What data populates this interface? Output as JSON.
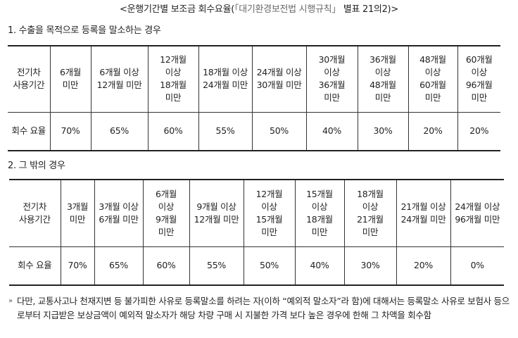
{
  "title": {
    "main": "<운행기간별 보조금 회수요율(",
    "law": "「대기환경보전법 시행규칙」",
    "suffix": " 별표 21의2)>"
  },
  "section_a": {
    "heading": "1. 수출을 목적으로 등록을 말소하는 경우",
    "header_label": "전기차 사용기간",
    "periods": [
      "6개월 미만",
      "6개월 이상 12개월 미만",
      "12개월 이상 18개월 미만",
      "18개월 이상 24개월 미만",
      "24개월 이상 30개월 미만",
      "30개월 이상 36개월 미만",
      "36개월 이상 48개월 미만",
      "48개월 이상 60개월 미만",
      "60개월 이상 96개월 미만"
    ],
    "rate_label": "회수 요율",
    "rates": [
      "70%",
      "65%",
      "60%",
      "55%",
      "50%",
      "40%",
      "30%",
      "20%",
      "20%"
    ]
  },
  "section_b": {
    "heading": "2. 그 밖의 경우",
    "header_label": "전기차 사용기간",
    "periods": [
      "3개월 미만",
      "3개월 이상 6개월 미만",
      "6개월 이상 9개월 미만",
      "9개월 이상 12개월 미만",
      "12개월 이상 15개월 미만",
      "15개월 이상 18개월 미만",
      "18개월 이상 21개월 미만",
      "21개월 이상 24개월 미만",
      "24개월 이상 96개월 미만"
    ],
    "rate_label": "회수 요율",
    "rates": [
      "70%",
      "65%",
      "60%",
      "55%",
      "50%",
      "40%",
      "30%",
      "20%",
      "0%"
    ]
  },
  "note": {
    "bullet": "»",
    "text": "다만, 교통사고나 천재지변 등 불가피한 사유로 등록말소를 하려는 자(이하 “예외적 말소자”라 함)에 대해서는 등록말소 사유로 보험사 등으로부터 지급받은 보상금액이 예외적 말소자가 해당 차량 구매 시 지불한 가격 보다 높은 경우에 한해 그 차액을 회수함"
  }
}
